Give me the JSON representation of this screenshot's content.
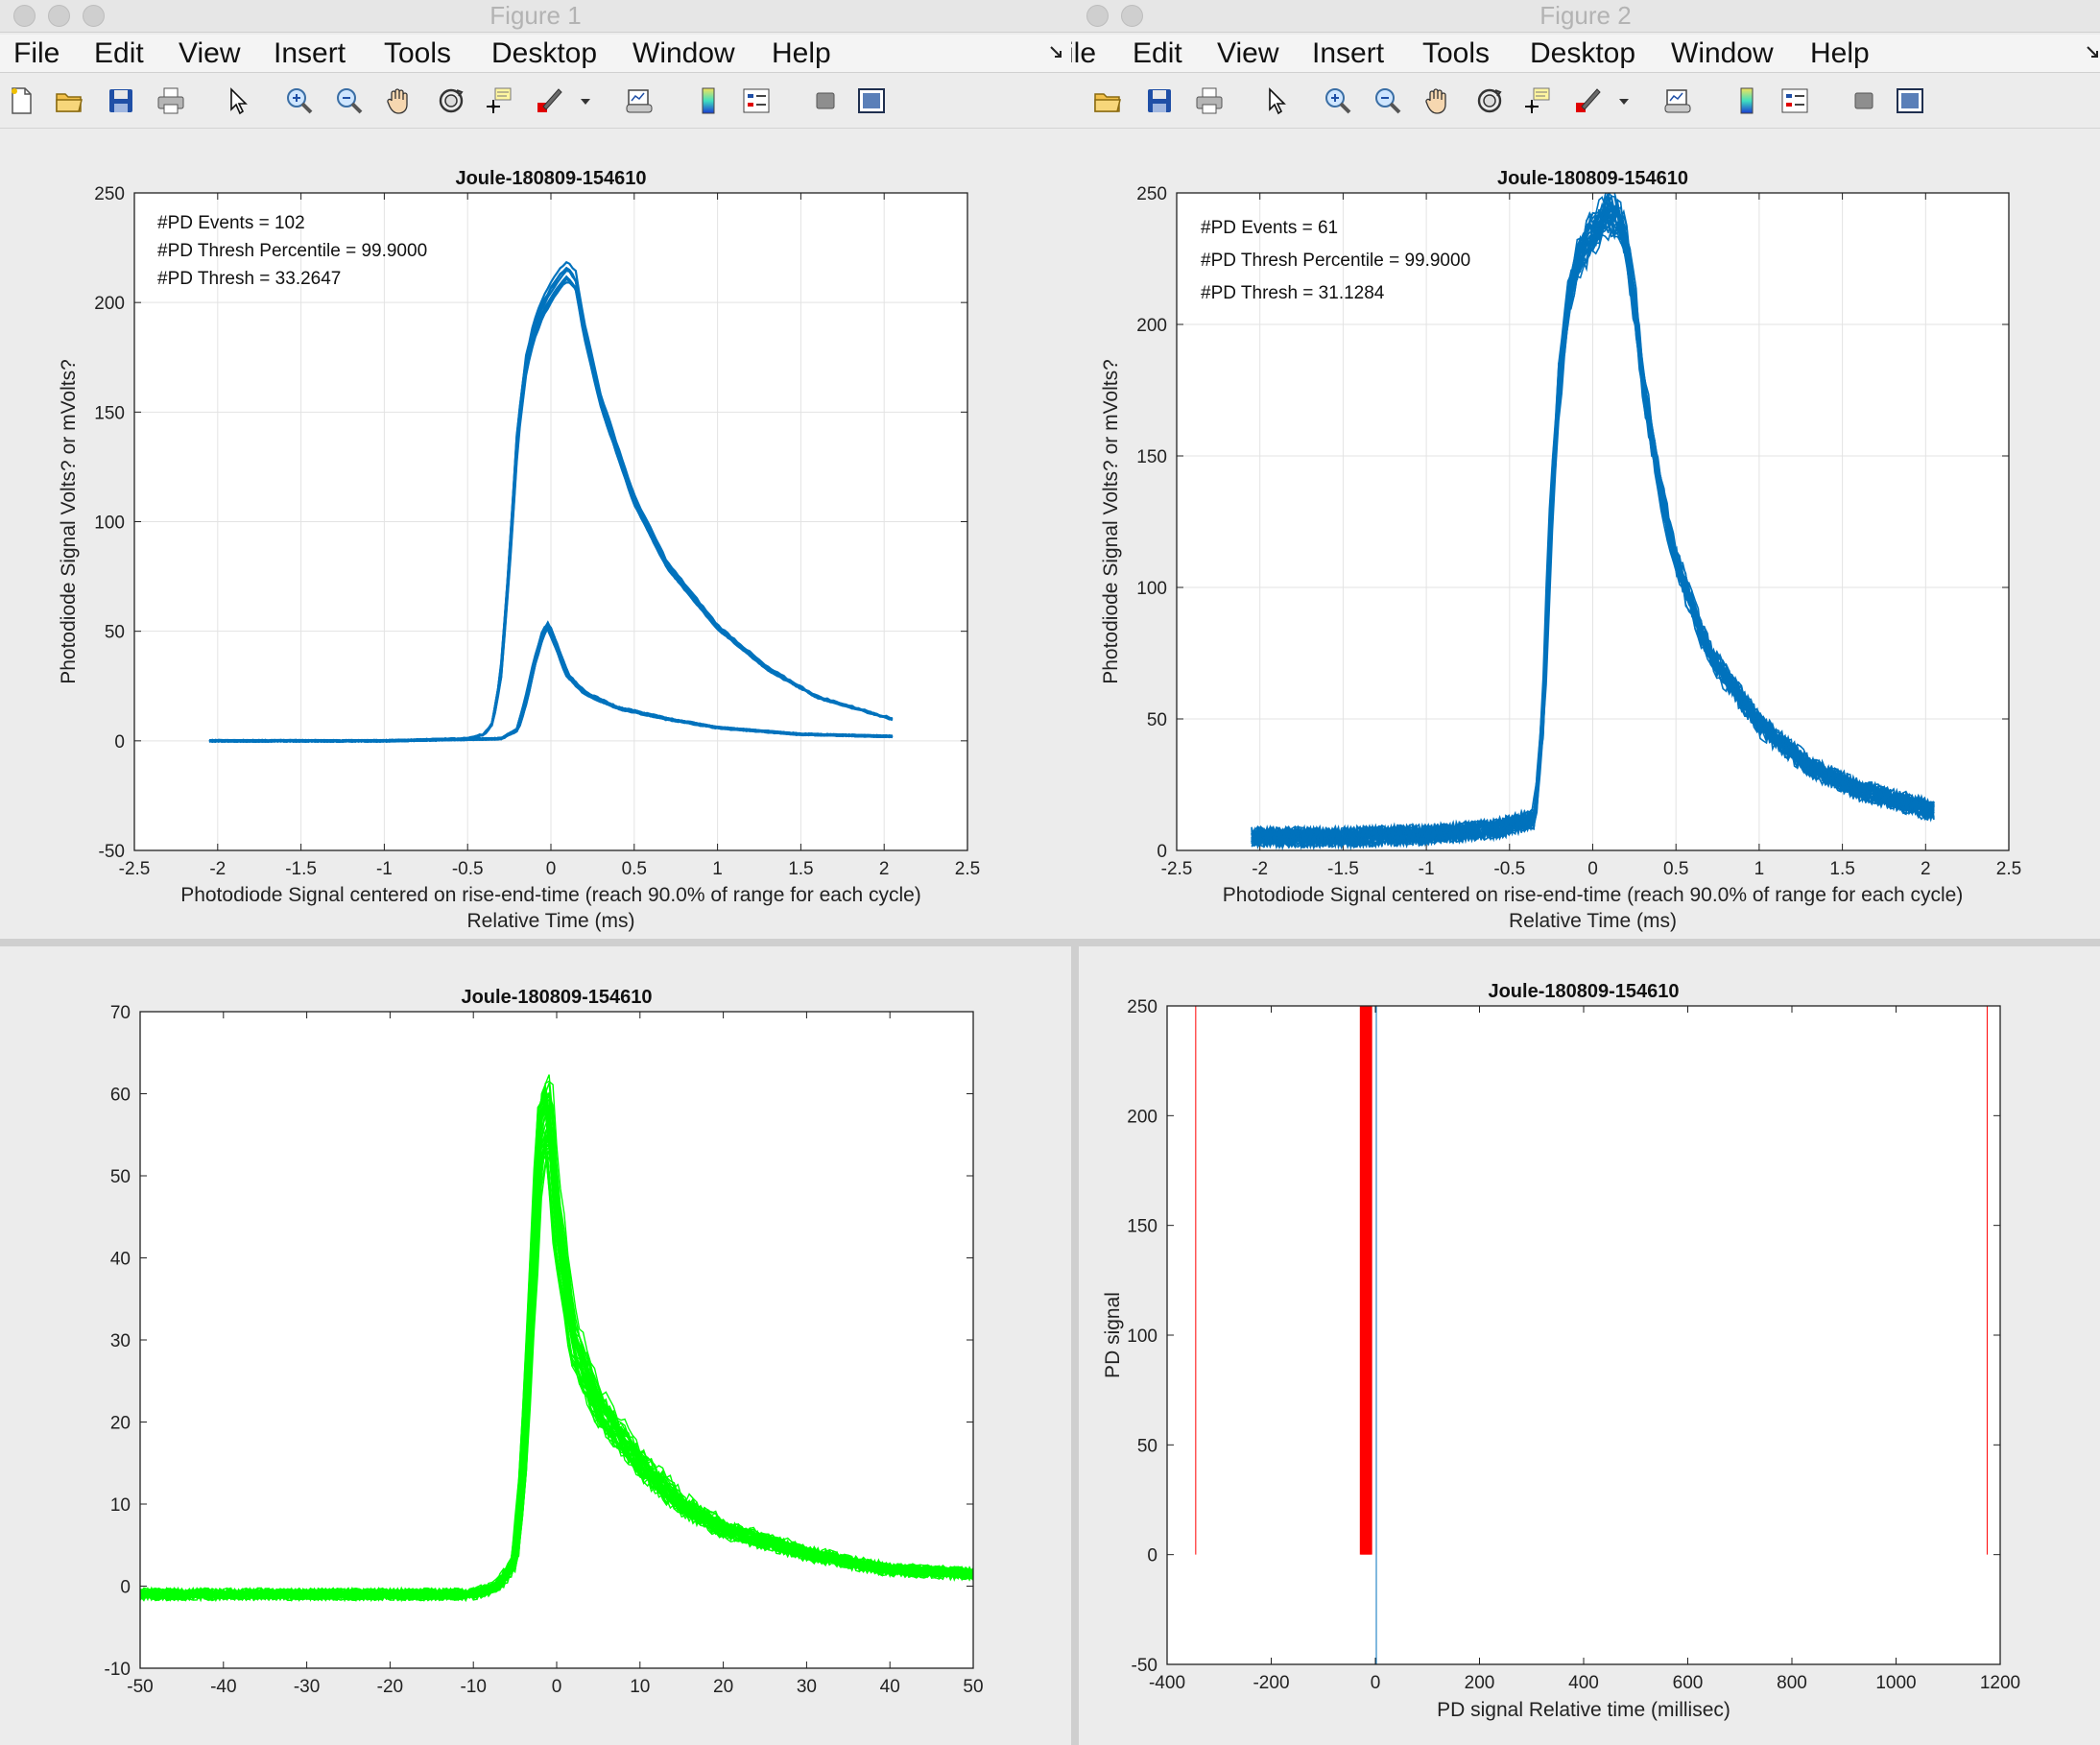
{
  "windows": [
    {
      "title": "Figure 1",
      "menu": [
        "File",
        "Edit",
        "View",
        "Insert",
        "Tools",
        "Desktop",
        "Window",
        "Help"
      ],
      "toolbar_icons": [
        "new-file-icon",
        "open-folder-icon",
        "save-icon",
        "print-icon",
        "arrow-pointer-icon",
        "zoom-in-icon",
        "zoom-out-icon",
        "pan-hand-icon",
        "rotate-3d-icon",
        "data-cursor-icon",
        "brush-icon",
        "dropdown-arrow-icon",
        "link-plot-icon",
        "colorbar-icon",
        "legend-icon",
        "hide-plot-tools-icon",
        "show-plot-tools-icon"
      ]
    },
    {
      "title": "Figure 2",
      "menu": [
        "File",
        "Edit",
        "View",
        "Insert",
        "Tools",
        "Desktop",
        "Window",
        "Help"
      ],
      "menu_first_visible": "ile",
      "toolbar_icons": [
        "open-folder-icon",
        "save-icon",
        "print-icon",
        "arrow-pointer-icon",
        "zoom-in-icon",
        "zoom-out-icon",
        "pan-hand-icon",
        "rotate-3d-icon",
        "data-cursor-icon",
        "brush-icon",
        "dropdown-arrow-icon",
        "link-plot-icon",
        "colorbar-icon",
        "legend-icon",
        "hide-plot-tools-icon",
        "show-plot-tools-icon"
      ]
    }
  ],
  "colors": {
    "window_bg": "#ececec",
    "axes_bg": "#ffffff",
    "grid": "#e3e3e3",
    "blue_trace": "#0072bd",
    "green_trace": "#00ff00",
    "red_trace": "#ff0000"
  },
  "chart_data": [
    {
      "id": "fig1",
      "type": "line",
      "title": "Joule-180809-154610",
      "xlabel_line1": "Photodiode Signal centered on rise-end-time (reach 90.0% of range for each cycle)",
      "xlabel_line2": "Relative Time (ms)",
      "ylabel": "Photodiode Signal Volts? or mVolts?",
      "xlim": [
        -2.5,
        2.5
      ],
      "ylim": [
        -50,
        250
      ],
      "xticks": [
        "-2.5",
        "-2",
        "-1.5",
        "-1",
        "-0.5",
        "0",
        "0.5",
        "1",
        "1.5",
        "2",
        "2.5"
      ],
      "yticks": [
        "-50",
        "0",
        "50",
        "100",
        "150",
        "200",
        "250"
      ],
      "grid": true,
      "annotations": [
        "#PD Events = 102",
        "#PD Thresh Percentile = 99.9000",
        "#PD Thresh = 33.2647"
      ],
      "series": [
        {
          "x": [
            -2.05,
            -1.0,
            -0.5,
            -0.4,
            -0.35,
            -0.3,
            -0.25,
            -0.2,
            -0.15,
            -0.1,
            -0.05,
            0.0,
            0.05,
            0.1,
            0.15,
            0.2,
            0.3,
            0.5,
            0.7,
            1.0,
            1.3,
            1.6,
            2.05
          ],
          "y": [
            0,
            0,
            1,
            3,
            8,
            30,
            80,
            140,
            172,
            188,
            198,
            205,
            211,
            215,
            210,
            188,
            155,
            110,
            80,
            52,
            33,
            20,
            10
          ]
        },
        {
          "x": [
            -2.05,
            -1.0,
            -0.3,
            -0.2,
            -0.15,
            -0.1,
            -0.05,
            -0.02,
            0.0,
            0.05,
            0.1,
            0.2,
            0.4,
            0.7,
            1.0,
            1.5,
            2.05
          ],
          "y": [
            0,
            0,
            1,
            5,
            18,
            35,
            48,
            53,
            50,
            40,
            30,
            22,
            15,
            10,
            6,
            3,
            2
          ]
        }
      ]
    },
    {
      "id": "fig2",
      "type": "line",
      "title": "Joule-180809-154610",
      "xlabel_line1": "Photodiode Signal centered on rise-end-time (reach 90.0% of range for each cycle)",
      "xlabel_line2": "Relative Time (ms)",
      "ylabel": "Photodiode Signal Volts? or mVolts?",
      "xlim": [
        -2.5,
        2.5
      ],
      "ylim": [
        0,
        250
      ],
      "xticks": [
        "-2.5",
        "-2",
        "-1.5",
        "-1",
        "-0.5",
        "0",
        "0.5",
        "1",
        "1.5",
        "2",
        "2.5"
      ],
      "yticks": [
        "0",
        "50",
        "100",
        "150",
        "200",
        "250"
      ],
      "grid": true,
      "annotations": [
        "#PD Events = 61",
        "#PD Thresh Percentile = 99.9000",
        "#PD Thresh = 31.1284"
      ],
      "series": [
        {
          "x": [
            -2.05,
            -1.5,
            -1.0,
            -0.6,
            -0.35,
            -0.3,
            -0.25,
            -0.2,
            -0.15,
            -0.1,
            -0.05,
            0.0,
            0.05,
            0.1,
            0.15,
            0.2,
            0.25,
            0.3,
            0.4,
            0.5,
            0.7,
            1.0,
            1.3,
            1.6,
            2.05
          ],
          "y": [
            5,
            5,
            6,
            8,
            12,
            50,
            130,
            180,
            208,
            222,
            230,
            235,
            240,
            243,
            241,
            232,
            210,
            178,
            140,
            110,
            75,
            48,
            32,
            23,
            15
          ]
        }
      ]
    },
    {
      "id": "bottom-left",
      "type": "line",
      "title": "Joule-180809-154610",
      "xlim": [
        -50,
        50
      ],
      "ylim": [
        -10,
        70
      ],
      "xticks": [
        "-50",
        "-40",
        "-30",
        "-20",
        "-10",
        "0",
        "10",
        "20",
        "30",
        "40",
        "50"
      ],
      "yticks": [
        "-10",
        "0",
        "10",
        "20",
        "30",
        "40",
        "50",
        "60",
        "70"
      ],
      "grid": false,
      "series": [
        {
          "x": [
            -50,
            -40,
            -30,
            -20,
            -10,
            -7,
            -5,
            -4,
            -3,
            -2,
            -1,
            0,
            2,
            5,
            10,
            15,
            20,
            30,
            40,
            50
          ],
          "y": [
            -1,
            -1,
            -1,
            -1,
            -1,
            0,
            3,
            15,
            35,
            55,
            58,
            45,
            30,
            22,
            15,
            10,
            7,
            4,
            2,
            1.5
          ]
        }
      ]
    },
    {
      "id": "bottom-right",
      "type": "line",
      "title": "Joule-180809-154610",
      "xlabel": "PD signal Relative time (millisec)",
      "ylabel": "PD signal",
      "xlim": [
        -400,
        1200
      ],
      "ylim": [
        -50,
        250
      ],
      "xticks": [
        "-400",
        "-200",
        "0",
        "200",
        "400",
        "600",
        "800",
        "1000",
        "1200"
      ],
      "yticks": [
        "-50",
        "0",
        "50",
        "100",
        "150",
        "200",
        "250"
      ],
      "grid": false,
      "red_vertical_lines_x": [
        -345,
        -28,
        -26,
        -24,
        -22,
        -20,
        -18,
        -16,
        -14,
        -12,
        -10,
        -8,
        1175
      ],
      "blue_vertical_line_x": [
        0
      ]
    }
  ]
}
